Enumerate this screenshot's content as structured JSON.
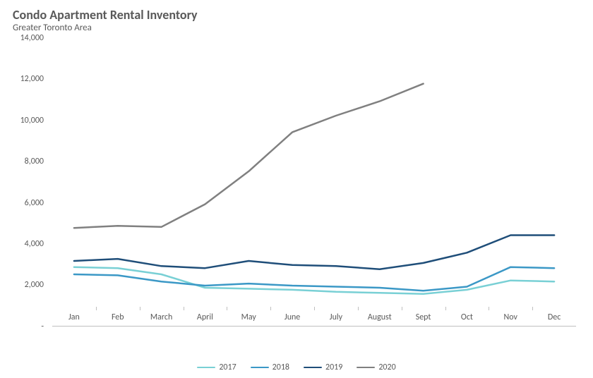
{
  "chart": {
    "type": "line",
    "title": "Condo Apartment Rental Inventory",
    "subtitle": "Greater Toronto Area",
    "title_fontsize": 18,
    "subtitle_fontsize": 13,
    "title_color": "#595959",
    "background_color": "#ffffff",
    "axis_color": "#bfbfbf",
    "tick_label_color": "#595959",
    "tick_fontsize": 12,
    "line_width": 2.5,
    "y": {
      "min": 0,
      "max": 14000,
      "step": 2000,
      "ticks": [
        {
          "v": 0,
          "label": "-"
        },
        {
          "v": 2000,
          "label": "2,000"
        },
        {
          "v": 4000,
          "label": "4,000"
        },
        {
          "v": 6000,
          "label": "6,000"
        },
        {
          "v": 8000,
          "label": "8,000"
        },
        {
          "v": 10000,
          "label": "10,000"
        },
        {
          "v": 12000,
          "label": "12,000"
        },
        {
          "v": 14000,
          "label": "14,000"
        }
      ]
    },
    "x": {
      "categories": [
        "Jan",
        "Feb",
        "March",
        "April",
        "May",
        "June",
        "July",
        "August",
        "Sept",
        "Oct",
        "Nov",
        "Dec"
      ]
    },
    "series": [
      {
        "name": "2017",
        "color": "#79d0d5",
        "values": [
          2850,
          2800,
          2500,
          1850,
          1800,
          1750,
          1650,
          1600,
          1550,
          1750,
          2200,
          2150
        ]
      },
      {
        "name": "2018",
        "color": "#3b98c6",
        "values": [
          2500,
          2450,
          2150,
          1950,
          2050,
          1950,
          1900,
          1850,
          1700,
          1900,
          2850,
          2800
        ]
      },
      {
        "name": "2019",
        "color": "#1f4e79",
        "values": [
          3150,
          3250,
          2900,
          2800,
          3150,
          2950,
          2900,
          2750,
          3050,
          3550,
          4400,
          4400
        ]
      },
      {
        "name": "2020",
        "color": "#808080",
        "values": [
          4750,
          4850,
          4800,
          5900,
          7500,
          9400,
          10200,
          10900,
          11750
        ]
      }
    ],
    "legend_position": "bottom"
  }
}
